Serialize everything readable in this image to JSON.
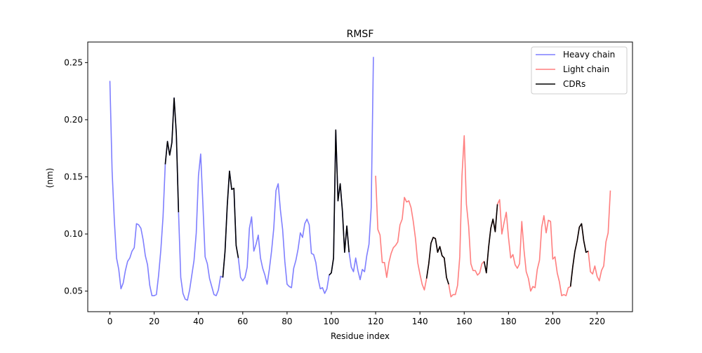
{
  "chart_data": {
    "type": "line",
    "title": "RMSF",
    "xlabel": "Residue index",
    "ylabel": "(nm)",
    "xlim": [
      -10,
      236
    ],
    "ylim": [
      0.032,
      0.268
    ],
    "x_ticks": [
      0,
      20,
      40,
      60,
      80,
      100,
      120,
      140,
      160,
      180,
      200,
      220
    ],
    "y_ticks": [
      0.05,
      0.1,
      0.15,
      0.2,
      0.25
    ],
    "y_tick_labels": [
      "0.05",
      "0.10",
      "0.15",
      "0.20",
      "0.25"
    ],
    "grid": false,
    "legend_position": "top-right",
    "series": [
      {
        "name": "Heavy chain",
        "color": "#7f7fff",
        "x": [
          0,
          1,
          2,
          3,
          4,
          5,
          6,
          7,
          8,
          9,
          10,
          11,
          12,
          13,
          14,
          15,
          16,
          17,
          18,
          19,
          20,
          21,
          22,
          23,
          24,
          25,
          26,
          27,
          28,
          29,
          30,
          31,
          32,
          33,
          34,
          35,
          36,
          37,
          38,
          39,
          40,
          41,
          42,
          43,
          44,
          45,
          46,
          47,
          48,
          49,
          50,
          51,
          52,
          53,
          54,
          55,
          56,
          57,
          58,
          59,
          60,
          61,
          62,
          63,
          64,
          65,
          66,
          67,
          68,
          69,
          70,
          71,
          72,
          73,
          74,
          75,
          76,
          77,
          78,
          79,
          80,
          81,
          82,
          83,
          84,
          85,
          86,
          87,
          88,
          89,
          90,
          91,
          92,
          93,
          94,
          95,
          96,
          97,
          98,
          99,
          100,
          101,
          102,
          103,
          104,
          105,
          106,
          107,
          108,
          109,
          110,
          111,
          112,
          113,
          114,
          115,
          116,
          117,
          118,
          119
        ],
        "y": [
          0.234,
          0.155,
          0.112,
          0.079,
          0.069,
          0.052,
          0.057,
          0.068,
          0.076,
          0.079,
          0.085,
          0.088,
          0.109,
          0.108,
          0.105,
          0.095,
          0.081,
          0.073,
          0.055,
          0.046,
          0.046,
          0.047,
          0.064,
          0.086,
          0.115,
          0.161,
          0.181,
          0.169,
          0.18,
          0.219,
          0.188,
          0.119,
          0.062,
          0.048,
          0.043,
          0.042,
          0.051,
          0.064,
          0.077,
          0.101,
          0.151,
          0.17,
          0.126,
          0.08,
          0.074,
          0.061,
          0.054,
          0.047,
          0.046,
          0.051,
          0.063,
          0.062,
          0.085,
          0.125,
          0.155,
          0.139,
          0.14,
          0.09,
          0.079,
          0.062,
          0.059,
          0.062,
          0.071,
          0.105,
          0.115,
          0.085,
          0.091,
          0.099,
          0.079,
          0.07,
          0.064,
          0.056,
          0.069,
          0.085,
          0.105,
          0.138,
          0.144,
          0.121,
          0.104,
          0.076,
          0.056,
          0.054,
          0.053,
          0.07,
          0.077,
          0.087,
          0.101,
          0.097,
          0.109,
          0.113,
          0.108,
          0.083,
          0.082,
          0.075,
          0.061,
          0.052,
          0.053,
          0.048,
          0.052,
          0.064,
          0.066,
          0.079,
          0.191,
          0.129,
          0.144,
          0.12,
          0.084,
          0.107,
          0.084,
          0.071,
          0.067,
          0.079,
          0.068,
          0.06,
          0.069,
          0.067,
          0.081,
          0.091,
          0.123,
          0.255
        ]
      },
      {
        "name": "Light chain",
        "color": "#ff7f7f",
        "x": [
          120,
          121,
          122,
          123,
          124,
          125,
          126,
          127,
          128,
          129,
          130,
          131,
          132,
          133,
          134,
          135,
          136,
          137,
          138,
          139,
          140,
          141,
          142,
          143,
          144,
          145,
          146,
          147,
          148,
          149,
          150,
          151,
          152,
          153,
          154,
          155,
          156,
          157,
          158,
          159,
          160,
          161,
          162,
          163,
          164,
          165,
          166,
          167,
          168,
          169,
          170,
          171,
          172,
          173,
          174,
          175,
          176,
          177,
          178,
          179,
          180,
          181,
          182,
          183,
          184,
          185,
          186,
          187,
          188,
          189,
          190,
          191,
          192,
          193,
          194,
          195,
          196,
          197,
          198,
          199,
          200,
          201,
          202,
          203,
          204,
          205,
          206,
          207,
          208,
          209,
          210,
          211,
          212,
          213,
          214,
          215,
          216,
          217,
          218,
          219,
          220,
          221,
          222,
          223,
          224,
          225,
          226
        ],
        "y": [
          0.151,
          0.104,
          0.099,
          0.075,
          0.075,
          0.062,
          0.075,
          0.083,
          0.088,
          0.09,
          0.093,
          0.108,
          0.113,
          0.132,
          0.128,
          0.129,
          0.123,
          0.111,
          0.096,
          0.075,
          0.065,
          0.056,
          0.051,
          0.061,
          0.074,
          0.092,
          0.097,
          0.096,
          0.084,
          0.089,
          0.081,
          0.079,
          0.062,
          0.056,
          0.045,
          0.047,
          0.047,
          0.055,
          0.08,
          0.151,
          0.186,
          0.126,
          0.107,
          0.074,
          0.068,
          0.068,
          0.064,
          0.066,
          0.074,
          0.076,
          0.066,
          0.088,
          0.105,
          0.113,
          0.102,
          0.126,
          0.13,
          0.1,
          0.11,
          0.119,
          0.097,
          0.079,
          0.082,
          0.073,
          0.07,
          0.074,
          0.111,
          0.086,
          0.067,
          0.061,
          0.05,
          0.054,
          0.053,
          0.069,
          0.077,
          0.106,
          0.116,
          0.101,
          0.112,
          0.111,
          0.078,
          0.08,
          0.066,
          0.058,
          0.046,
          0.047,
          0.046,
          0.053,
          0.054,
          0.071,
          0.085,
          0.094,
          0.106,
          0.109,
          0.094,
          0.084,
          0.085,
          0.067,
          0.065,
          0.072,
          0.063,
          0.059,
          0.068,
          0.072,
          0.093,
          0.101,
          0.138
        ]
      },
      {
        "name": "CDRs",
        "color": "#000000",
        "segments": [
          {
            "x": [
              25,
              26,
              27,
              28,
              29,
              30,
              31
            ],
            "y": [
              0.161,
              0.181,
              0.169,
              0.18,
              0.219,
              0.188,
              0.119
            ]
          },
          {
            "x": [
              51,
              52,
              53,
              54,
              55,
              56,
              57,
              58
            ],
            "y": [
              0.062,
              0.085,
              0.125,
              0.155,
              0.139,
              0.14,
              0.09,
              0.079
            ]
          },
          {
            "x": [
              99,
              100,
              101,
              102,
              103,
              104,
              105,
              106,
              107,
              108
            ],
            "y": [
              0.064,
              0.066,
              0.079,
              0.191,
              0.129,
              0.144,
              0.12,
              0.084,
              0.107,
              0.084
            ]
          },
          {
            "x": [
              143,
              144,
              145,
              146,
              147,
              148,
              149,
              150,
              151,
              152,
              153
            ],
            "y": [
              0.061,
              0.074,
              0.092,
              0.097,
              0.096,
              0.084,
              0.089,
              0.081,
              0.079,
              0.062,
              0.056
            ]
          },
          {
            "x": [
              169,
              170,
              171,
              172,
              173,
              174,
              175
            ],
            "y": [
              0.076,
              0.066,
              0.088,
              0.105,
              0.113,
              0.102,
              0.126
            ]
          },
          {
            "x": [
              208,
              209,
              210,
              211,
              212,
              213,
              214,
              215,
              216
            ],
            "y": [
              0.054,
              0.071,
              0.085,
              0.094,
              0.106,
              0.109,
              0.094,
              0.084,
              0.085
            ]
          }
        ]
      }
    ]
  }
}
